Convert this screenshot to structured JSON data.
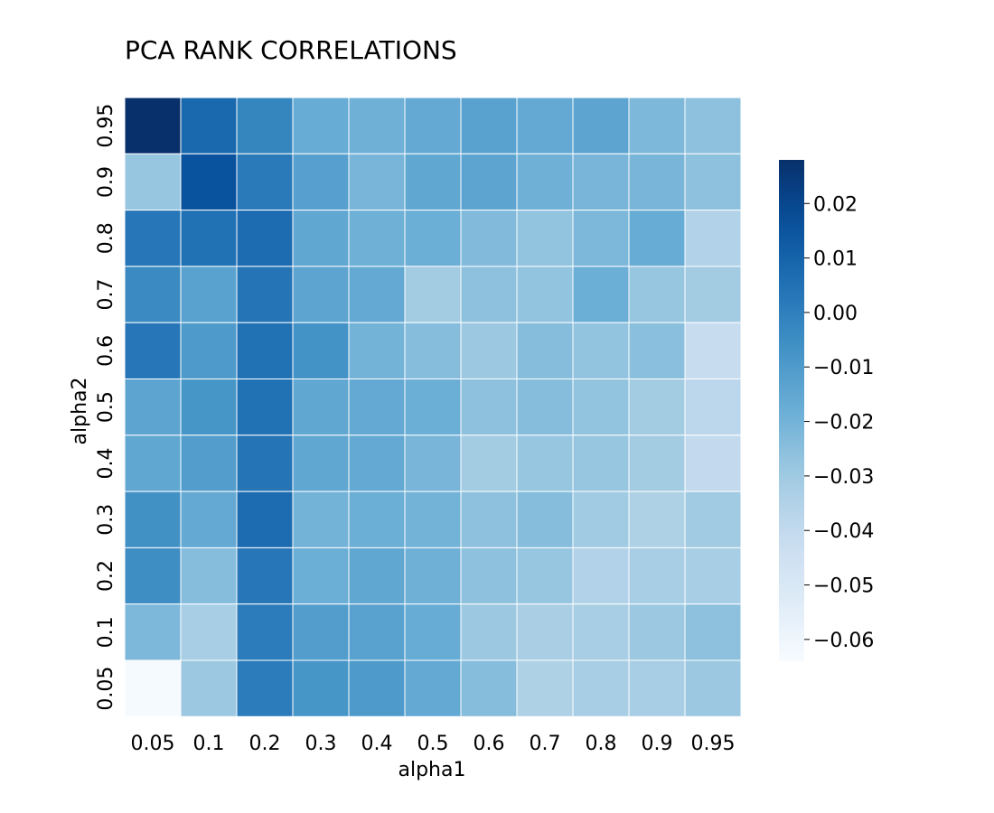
{
  "chart_data": {
    "type": "heatmap",
    "title": "PCA RANK CORRELATIONS",
    "xlabel": "alpha1",
    "ylabel": "alpha2",
    "x_categories": [
      "0.05",
      "0.1",
      "0.2",
      "0.3",
      "0.4",
      "0.5",
      "0.6",
      "0.7",
      "0.8",
      "0.9",
      "0.95"
    ],
    "y_categories": [
      "0.95",
      "0.9",
      "0.8",
      "0.7",
      "0.6",
      "0.5",
      "0.4",
      "0.3",
      "0.2",
      "0.1",
      "0.05"
    ],
    "values": [
      [
        0.028,
        0.008,
        -0.002,
        -0.017,
        -0.019,
        -0.016,
        -0.013,
        -0.016,
        -0.014,
        -0.022,
        -0.026
      ],
      [
        -0.028,
        0.016,
        0.002,
        -0.012,
        -0.021,
        -0.015,
        -0.014,
        -0.019,
        -0.021,
        -0.021,
        -0.026
      ],
      [
        0.003,
        0.005,
        0.007,
        -0.015,
        -0.019,
        -0.018,
        -0.023,
        -0.027,
        -0.022,
        -0.017,
        -0.035
      ],
      [
        -0.004,
        -0.013,
        0.004,
        -0.014,
        -0.016,
        -0.031,
        -0.026,
        -0.027,
        -0.018,
        -0.028,
        -0.031
      ],
      [
        0.003,
        -0.01,
        0.005,
        -0.007,
        -0.02,
        -0.024,
        -0.029,
        -0.024,
        -0.027,
        -0.025,
        -0.042
      ],
      [
        -0.014,
        -0.008,
        0.005,
        -0.015,
        -0.016,
        -0.018,
        -0.026,
        -0.024,
        -0.027,
        -0.031,
        -0.038
      ],
      [
        -0.015,
        -0.011,
        0.004,
        -0.015,
        -0.016,
        -0.021,
        -0.031,
        -0.028,
        -0.028,
        -0.031,
        -0.04
      ],
      [
        -0.006,
        -0.016,
        0.007,
        -0.02,
        -0.018,
        -0.02,
        -0.026,
        -0.024,
        -0.03,
        -0.034,
        -0.03
      ],
      [
        -0.005,
        -0.024,
        0.003,
        -0.018,
        -0.015,
        -0.019,
        -0.026,
        -0.028,
        -0.035,
        -0.032,
        -0.032
      ],
      [
        -0.022,
        -0.032,
        0.001,
        -0.011,
        -0.013,
        -0.017,
        -0.029,
        -0.033,
        -0.032,
        -0.029,
        -0.026
      ],
      [
        -0.063,
        -0.029,
        0.001,
        -0.008,
        -0.01,
        -0.016,
        -0.024,
        -0.034,
        -0.032,
        -0.032,
        -0.029
      ]
    ],
    "colorbar": {
      "colormap": "Blues",
      "vmin": -0.064,
      "vmax": 0.028,
      "ticks": [
        0.02,
        0.01,
        0.0,
        -0.01,
        -0.02,
        -0.03,
        -0.04,
        -0.05,
        -0.06
      ],
      "tick_labels": [
        "0.02",
        "0.01",
        "0.00",
        "−0.01",
        "−0.02",
        "−0.03",
        "−0.04",
        "−0.05",
        "−0.06"
      ]
    },
    "grid": true,
    "legend": "colorbar-right"
  }
}
